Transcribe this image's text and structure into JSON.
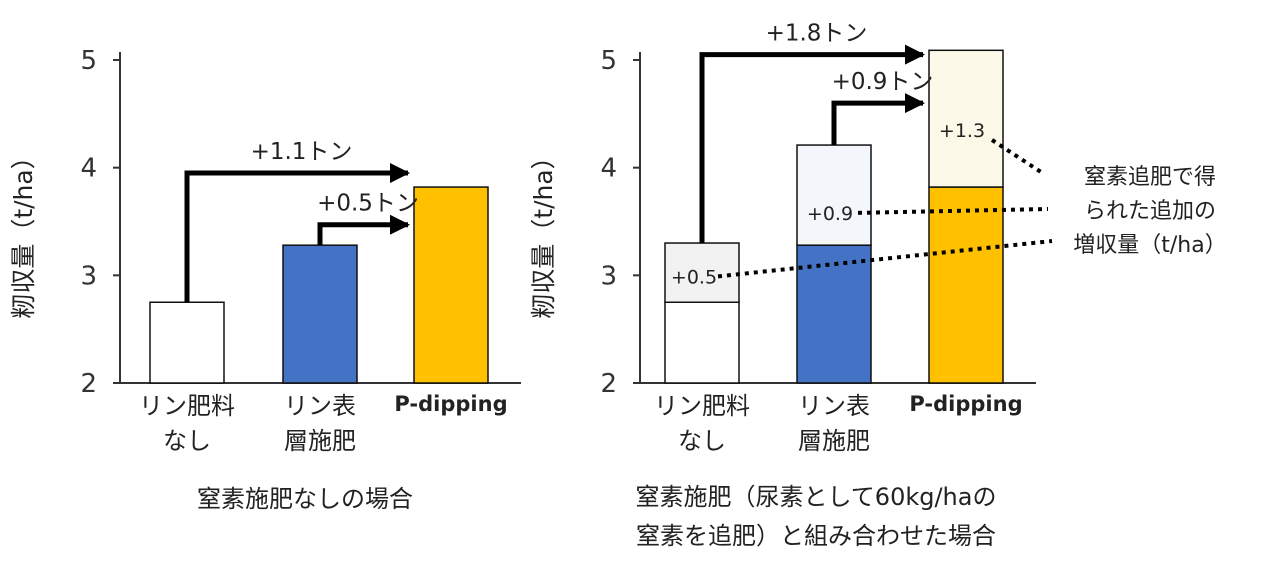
{
  "chart_data": [
    {
      "type": "bar",
      "caption": "窒素施肥なしの場合",
      "ylabel": "籾収量（t/ha）",
      "ylim": [
        2,
        5
      ],
      "yticks": [
        "2",
        "3",
        "4",
        "5"
      ],
      "categories": [
        {
          "lines": [
            "リン肥料",
            "なし"
          ]
        },
        {
          "lines": [
            "リン表",
            "層施肥"
          ]
        },
        {
          "lines": [
            "P-dipping"
          ]
        }
      ],
      "values": [
        2.75,
        3.28,
        3.82
      ],
      "colors": [
        "#ffffff",
        "#4472c4",
        "#ffc000"
      ],
      "differences": [
        {
          "label": "+1.1トン",
          "from": 0,
          "to": 2,
          "level": 3.95
        },
        {
          "label": "+0.5トン",
          "from": 1,
          "to": 2,
          "level": 3.47
        }
      ]
    },
    {
      "type": "bar",
      "stacked": true,
      "caption": [
        "窒素施肥（尿素として60kg/haの",
        "窒素を追肥）と組み合わせた場合"
      ],
      "ylabel": "籾収量（t/ha）",
      "ylim": [
        2,
        5
      ],
      "yticks": [
        "2",
        "3",
        "4",
        "5"
      ],
      "categories": [
        {
          "lines": [
            "リン肥料",
            "なし"
          ]
        },
        {
          "lines": [
            "リン表",
            "層施肥"
          ]
        },
        {
          "lines": [
            "P-dipping"
          ]
        }
      ],
      "base_values": [
        2.75,
        3.28,
        3.82
      ],
      "increments": [
        0.55,
        0.93,
        1.27
      ],
      "increment_labels": [
        "+0.5",
        "+0.9",
        "+1.3"
      ],
      "base_colors": [
        "#ffffff",
        "#4472c4",
        "#ffc000"
      ],
      "increment_colors": [
        "#f2f2f2",
        "#f3f6fb",
        "#fdf9e9"
      ],
      "differences": [
        {
          "label": "+1.8トン",
          "from": 0,
          "to": 2,
          "level": 5.05
        },
        {
          "label": "+0.9トン",
          "from": 1,
          "to": 2,
          "level": 4.6
        }
      ],
      "annotation": [
        "窒素追肥で得",
        "られた追加の",
        "増収量（t/ha）"
      ]
    }
  ]
}
